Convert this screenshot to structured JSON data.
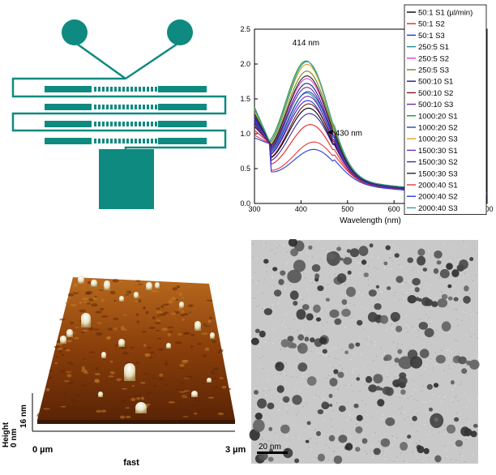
{
  "spectra": {
    "chart_data": {
      "type": "line",
      "xlabel": "Wavelength (nm)",
      "ylabel": "",
      "xlim": [
        300,
        800
      ],
      "ylim": [
        0.0,
        2.5
      ],
      "xticks": [
        "300",
        "400",
        "500",
        "600",
        "700",
        "800"
      ],
      "yticks": [
        "0.0",
        "0.5",
        "1.0",
        "1.5",
        "2.0",
        "2.5"
      ],
      "legend_position": "top-right",
      "annotations": [
        {
          "text": "414 nm",
          "x": 414,
          "y": 2.27
        },
        {
          "text": "430 nm",
          "x": 430,
          "y": 1.02,
          "arrow": true
        }
      ],
      "series": [
        {
          "name": "50:1 S1 (µl/min)",
          "color": "#000000",
          "peak": 1.52,
          "lambda": 418,
          "start": 1.15
        },
        {
          "name": "50:1 S2",
          "color": "#e8222a",
          "peak": 1.28,
          "lambda": 422,
          "start": 1.05
        },
        {
          "name": "50:1 S3",
          "color": "#1f2fd8",
          "peak": 1.63,
          "lambda": 416,
          "start": 1.18
        },
        {
          "name": "250:5 S1",
          "color": "#1c8f8a",
          "peak": 1.74,
          "lambda": 414,
          "start": 1.22
        },
        {
          "name": "250:5 S2",
          "color": "#e83bc6",
          "peak": 1.95,
          "lambda": 414,
          "start": 1.26
        },
        {
          "name": "250:5 S3",
          "color": "#6a8a1f",
          "peak": 2.06,
          "lambda": 414,
          "start": 1.3
        },
        {
          "name": "500:10 S1",
          "color": "#1a1a8c",
          "peak": 1.88,
          "lambda": 414,
          "start": 1.24
        },
        {
          "name": "500:10 S2",
          "color": "#7a1616",
          "peak": 1.58,
          "lambda": 418,
          "start": 1.12
        },
        {
          "name": "500:10 S3",
          "color": "#6b2a9a",
          "peak": 1.82,
          "lambda": 414,
          "start": 1.2
        },
        {
          "name": "1000:20 S1",
          "color": "#2a8c2a",
          "peak": 2.21,
          "lambda": 412,
          "start": 1.38
        },
        {
          "name": "1000:20 S2",
          "color": "#1848c8",
          "peak": 1.76,
          "lambda": 416,
          "start": 1.21
        },
        {
          "name": "1000:20 S3",
          "color": "#e0a020",
          "peak": 2.16,
          "lambda": 414,
          "start": 1.34
        },
        {
          "name": "1500:30 S1",
          "color": "#7a2ab0",
          "peak": 1.69,
          "lambda": 416,
          "start": 1.16
        },
        {
          "name": "1500:30 S2",
          "color": "#3a2aa8",
          "peak": 1.44,
          "lambda": 420,
          "start": 1.1
        },
        {
          "name": "1500:30 S3",
          "color": "#222222",
          "peak": 1.99,
          "lambda": 414,
          "start": 1.28
        },
        {
          "name": "2000:40 S1",
          "color": "#e23a3a",
          "peak": 1.03,
          "lambda": 430,
          "start": 0.98
        },
        {
          "name": "2000:40 S2",
          "color": "#2a3ae0",
          "peak": 0.92,
          "lambda": 430,
          "start": 0.94
        },
        {
          "name": "2000:40 S3",
          "color": "#2aa0a8",
          "peak": 2.2,
          "lambda": 414,
          "start": 1.36
        }
      ]
    }
  },
  "afm": {
    "axis_start": "0 µm",
    "axis_end": "3 µm",
    "fast_label": "fast",
    "height_label": "Height",
    "height_max": "16 nm",
    "height_min": "0 nm"
  },
  "tem": {
    "scale_bar": "20 nm"
  },
  "colors": {
    "chip_teal": "#0f8a80",
    "afm_brown": "#8a3e0a",
    "tem_gray": "#c9c9c9"
  }
}
